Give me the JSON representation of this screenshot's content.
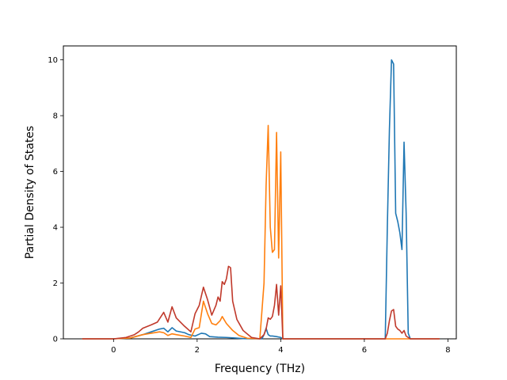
{
  "chart_data": {
    "type": "line",
    "title": "",
    "xlabel": "Frequency (THz)",
    "ylabel": "Partial Density of States",
    "xlim": [
      -1.2,
      8.2
    ],
    "ylim": [
      0,
      10.5
    ],
    "xticks": [
      0,
      2,
      4,
      6,
      8
    ],
    "xtick_labels": [
      "0",
      "2",
      "4",
      "6",
      "8"
    ],
    "yticks": [
      0,
      2,
      4,
      6,
      8,
      10
    ],
    "ytick_labels": [
      "0",
      "2",
      "4",
      "6",
      "8",
      "10"
    ],
    "grid": false,
    "legend": "none",
    "series": [
      {
        "color": "#1f77b4",
        "x": [
          -0.75,
          0.0,
          0.4,
          0.7,
          0.9,
          1.1,
          1.2,
          1.3,
          1.4,
          1.5,
          1.7,
          1.8,
          1.95,
          2.1,
          2.2,
          2.3,
          2.5,
          2.7,
          2.9,
          3.1,
          3.3,
          3.55,
          3.6,
          3.65,
          3.7,
          3.75,
          3.8,
          3.9,
          4.0,
          4.05,
          6.5,
          6.55,
          6.6,
          6.65,
          6.7,
          6.75,
          6.8,
          6.85,
          6.9,
          6.95,
          7.0,
          7.05,
          7.1,
          7.8
        ],
        "y": [
          0,
          0,
          0.03,
          0.15,
          0.25,
          0.35,
          0.38,
          0.25,
          0.4,
          0.28,
          0.22,
          0.15,
          0.1,
          0.2,
          0.18,
          0.08,
          0.06,
          0.05,
          0.03,
          0.01,
          0,
          0,
          0.15,
          0.38,
          0.15,
          0.1,
          0.1,
          0.08,
          0.05,
          0,
          0,
          4.0,
          7.5,
          10.0,
          9.85,
          4.5,
          4.2,
          3.8,
          3.2,
          7.05,
          4.5,
          0.2,
          0,
          0
        ]
      },
      {
        "color": "#ff7f0e",
        "x": [
          -0.75,
          0.0,
          0.4,
          0.7,
          0.9,
          1.1,
          1.2,
          1.3,
          1.4,
          1.5,
          1.7,
          1.85,
          1.95,
          2.05,
          2.15,
          2.25,
          2.35,
          2.45,
          2.55,
          2.6,
          2.7,
          2.85,
          3.0,
          3.2,
          3.5,
          3.6,
          3.65,
          3.7,
          3.75,
          3.8,
          3.85,
          3.9,
          3.95,
          4.0,
          4.05,
          4.1,
          7.8
        ],
        "y": [
          0,
          0,
          0.03,
          0.15,
          0.2,
          0.25,
          0.22,
          0.12,
          0.18,
          0.15,
          0.1,
          0.05,
          0.35,
          0.4,
          1.35,
          0.9,
          0.55,
          0.5,
          0.65,
          0.8,
          0.55,
          0.3,
          0.12,
          0.02,
          0,
          2.0,
          5.5,
          7.65,
          4.0,
          3.1,
          3.2,
          7.4,
          2.9,
          6.7,
          0,
          0,
          0
        ]
      },
      {
        "color": "#c0392b",
        "x": [
          -0.75,
          0.0,
          0.3,
          0.5,
          0.6,
          0.7,
          0.9,
          1.05,
          1.2,
          1.3,
          1.4,
          1.5,
          1.7,
          1.85,
          1.95,
          2.05,
          2.15,
          2.25,
          2.35,
          2.45,
          2.5,
          2.55,
          2.6,
          2.65,
          2.7,
          2.75,
          2.8,
          2.85,
          2.95,
          3.1,
          3.3,
          3.5,
          3.6,
          3.65,
          3.7,
          3.75,
          3.8,
          3.85,
          3.9,
          3.95,
          4.0,
          4.05,
          6.5,
          6.55,
          6.6,
          6.65,
          6.7,
          6.75,
          6.8,
          6.85,
          6.9,
          6.95,
          7.0,
          7.05,
          7.1,
          7.8
        ],
        "y": [
          0,
          0,
          0.05,
          0.15,
          0.25,
          0.38,
          0.5,
          0.6,
          0.95,
          0.6,
          1.15,
          0.75,
          0.45,
          0.25,
          0.9,
          1.2,
          1.85,
          1.4,
          0.85,
          1.2,
          1.5,
          1.35,
          2.05,
          1.95,
          2.15,
          2.6,
          2.55,
          1.35,
          0.7,
          0.3,
          0.05,
          0,
          0.15,
          0.35,
          0.75,
          0.7,
          0.8,
          1.2,
          1.95,
          0.85,
          1.9,
          0,
          0,
          0.2,
          0.65,
          1.0,
          1.05,
          0.45,
          0.35,
          0.3,
          0.2,
          0.3,
          0.1,
          0.05,
          0,
          0
        ]
      }
    ]
  }
}
